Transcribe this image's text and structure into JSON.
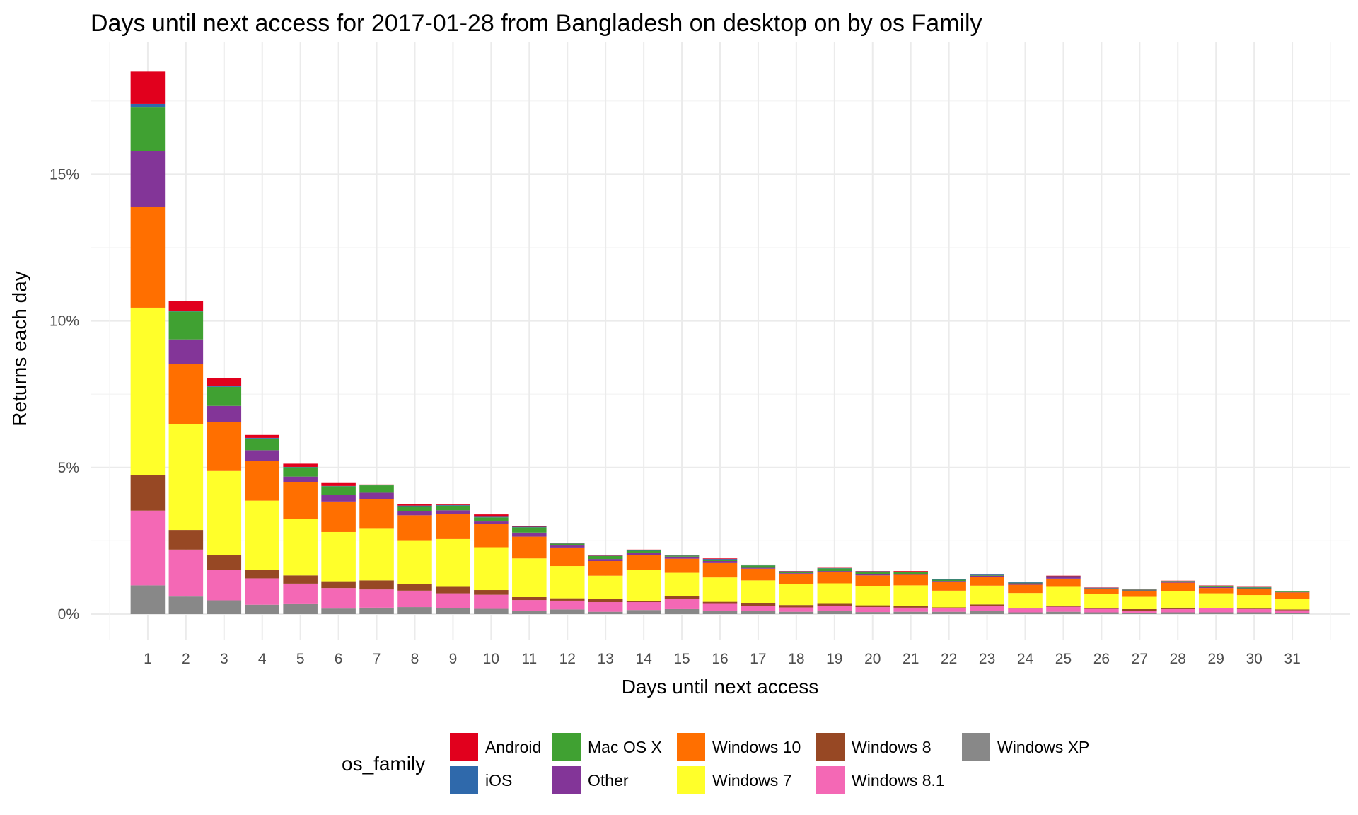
{
  "chart_data": {
    "type": "bar",
    "stacked": true,
    "title": "Days until next access for 2017-01-28 from Bangladesh on desktop on by os Family",
    "xlabel": "Days until next access",
    "ylabel": "Returns each day",
    "y_unit": "percent",
    "ylim": [
      0,
      18.5
    ],
    "y_ticks": [
      0,
      5,
      10,
      15
    ],
    "y_tick_labels": [
      "0%",
      "5%",
      "10%",
      "15%"
    ],
    "grid": true,
    "legend": {
      "title": "os_family",
      "position": "bottom"
    },
    "categories": [
      "1",
      "2",
      "3",
      "4",
      "5",
      "6",
      "7",
      "8",
      "9",
      "10",
      "11",
      "12",
      "13",
      "14",
      "15",
      "16",
      "17",
      "18",
      "19",
      "20",
      "21",
      "22",
      "23",
      "24",
      "25",
      "26",
      "27",
      "28",
      "29",
      "30",
      "31"
    ],
    "series": [
      {
        "name": "Windows XP",
        "color": "#888888",
        "values": [
          0.98,
          0.6,
          0.47,
          0.32,
          0.34,
          0.19,
          0.22,
          0.24,
          0.2,
          0.18,
          0.12,
          0.16,
          0.08,
          0.14,
          0.17,
          0.12,
          0.11,
          0.08,
          0.12,
          0.07,
          0.08,
          0.08,
          0.11,
          0.06,
          0.08,
          0.06,
          0.05,
          0.06,
          0.06,
          0.06,
          0.04
        ]
      },
      {
        "name": "Windows 8.1",
        "color": "#F468B5",
        "values": [
          2.55,
          1.6,
          1.05,
          0.9,
          0.7,
          0.7,
          0.62,
          0.56,
          0.51,
          0.48,
          0.36,
          0.3,
          0.33,
          0.27,
          0.34,
          0.23,
          0.17,
          0.15,
          0.17,
          0.17,
          0.14,
          0.13,
          0.17,
          0.13,
          0.17,
          0.12,
          0.07,
          0.11,
          0.14,
          0.11,
          0.09
        ]
      },
      {
        "name": "Windows 8",
        "color": "#974824",
        "values": [
          1.2,
          0.67,
          0.5,
          0.3,
          0.28,
          0.23,
          0.31,
          0.22,
          0.22,
          0.16,
          0.1,
          0.08,
          0.1,
          0.05,
          0.1,
          0.07,
          0.09,
          0.08,
          0.06,
          0.06,
          0.07,
          0.02,
          0.05,
          0.02,
          0.02,
          0.03,
          0.05,
          0.05,
          0.01,
          0.02,
          0.03
        ]
      },
      {
        "name": "Windows 7",
        "color": "#FFFF2A",
        "values": [
          5.72,
          3.6,
          2.86,
          2.35,
          1.93,
          1.68,
          1.76,
          1.5,
          1.63,
          1.46,
          1.32,
          1.1,
          0.8,
          1.06,
          0.8,
          0.83,
          0.78,
          0.71,
          0.7,
          0.65,
          0.69,
          0.57,
          0.64,
          0.51,
          0.66,
          0.48,
          0.42,
          0.56,
          0.5,
          0.46,
          0.36
        ]
      },
      {
        "name": "Windows 10",
        "color": "#FF6F00",
        "values": [
          3.45,
          2.05,
          1.67,
          1.35,
          1.26,
          1.04,
          1.01,
          0.85,
          0.86,
          0.79,
          0.74,
          0.63,
          0.5,
          0.5,
          0.48,
          0.49,
          0.4,
          0.36,
          0.39,
          0.37,
          0.36,
          0.29,
          0.3,
          0.28,
          0.28,
          0.17,
          0.2,
          0.29,
          0.18,
          0.21,
          0.22
        ]
      },
      {
        "name": "Other",
        "color": "#833598",
        "values": [
          1.9,
          0.85,
          0.55,
          0.37,
          0.18,
          0.22,
          0.22,
          0.15,
          0.12,
          0.09,
          0.14,
          0.07,
          0.07,
          0.08,
          0.07,
          0.07,
          0.03,
          0.02,
          0.03,
          0.04,
          0.03,
          0.04,
          0.04,
          0.05,
          0.05,
          0.02,
          0.02,
          0.02,
          0.03,
          0.02,
          0.01
        ]
      },
      {
        "name": "Mac OS X",
        "color": "#40A132",
        "values": [
          1.5,
          0.95,
          0.65,
          0.4,
          0.32,
          0.3,
          0.25,
          0.16,
          0.16,
          0.14,
          0.18,
          0.06,
          0.1,
          0.06,
          0.03,
          0.04,
          0.08,
          0.05,
          0.09,
          0.09,
          0.07,
          0.04,
          0.02,
          0.02,
          0.01,
          0.01,
          0.02,
          0.03,
          0.04,
          0.03,
          0.02
        ]
      },
      {
        "name": "iOS",
        "color": "#2F69AB",
        "values": [
          0.1,
          0.02,
          0.02,
          0.02,
          0.01,
          0.01,
          0.01,
          0.02,
          0.02,
          0.02,
          0.02,
          0.01,
          0.01,
          0.02,
          0.01,
          0.03,
          0.01,
          0.01,
          0.01,
          0.01,
          0.01,
          0.02,
          0.02,
          0.03,
          0.02,
          0.01,
          0.01,
          0.01,
          0.01,
          0.01,
          0.01
        ]
      },
      {
        "name": "Android",
        "color": "#E1001D",
        "values": [
          1.1,
          0.35,
          0.27,
          0.1,
          0.11,
          0.1,
          0.02,
          0.05,
          0.02,
          0.08,
          0.02,
          0.02,
          0.01,
          0.02,
          0.02,
          0.02,
          0.02,
          0.01,
          0.01,
          0.01,
          0.02,
          0.01,
          0.02,
          0.01,
          0.02,
          0.01,
          0.01,
          0.01,
          0.01,
          0.01,
          0.01
        ]
      }
    ],
    "legend_order": [
      "Android",
      "iOS",
      "Mac OS X",
      "Other",
      "Windows 10",
      "Windows 7",
      "Windows 8",
      "Windows 8.1",
      "Windows XP"
    ]
  }
}
